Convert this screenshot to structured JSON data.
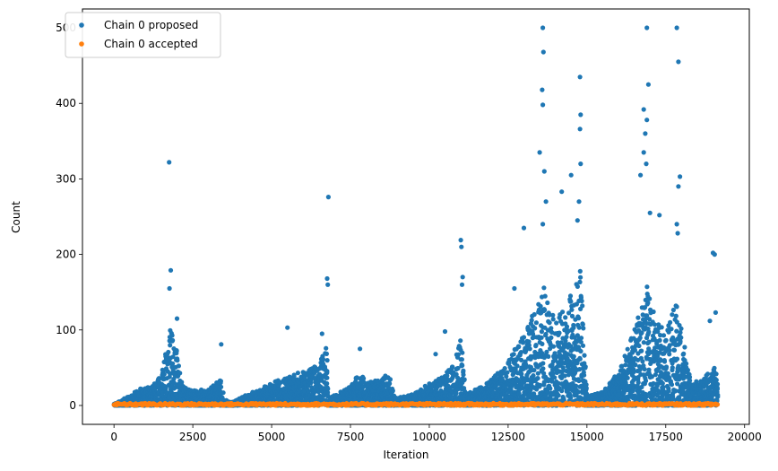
{
  "chart_data": {
    "type": "scatter",
    "title": "",
    "xlabel": "Iteration",
    "ylabel": "Count",
    "xlim": [
      -1000,
      20150
    ],
    "ylim": [
      -25,
      525
    ],
    "xticks": [
      0,
      2500,
      5000,
      7500,
      10000,
      12500,
      15000,
      17500,
      20000
    ],
    "xtick_labels": [
      "0",
      "2500",
      "5000",
      "7500",
      "10000",
      "12500",
      "15000",
      "17500",
      "20000"
    ],
    "yticks": [
      0,
      100,
      200,
      300,
      400,
      500
    ],
    "ytick_labels": [
      "0",
      "100",
      "200",
      "300",
      "400",
      "500"
    ],
    "grid": false,
    "legend": "top-left",
    "n_iterations": 19150,
    "series": [
      {
        "name": "Chain 0 proposed",
        "color": "#1f77b4",
        "envelope": [
          [
            0,
            2
          ],
          [
            200,
            6
          ],
          [
            500,
            14
          ],
          [
            800,
            22
          ],
          [
            1200,
            25
          ],
          [
            1500,
            40
          ],
          [
            1700,
            85
          ],
          [
            1800,
            110
          ],
          [
            2000,
            70
          ],
          [
            2200,
            25
          ],
          [
            2500,
            20
          ],
          [
            3000,
            22
          ],
          [
            3400,
            35
          ],
          [
            3500,
            8
          ],
          [
            3700,
            4
          ],
          [
            4000,
            10
          ],
          [
            4500,
            20
          ],
          [
            5000,
            30
          ],
          [
            5500,
            40
          ],
          [
            6000,
            45
          ],
          [
            6500,
            55
          ],
          [
            6750,
            85
          ],
          [
            6800,
            8
          ],
          [
            7000,
            14
          ],
          [
            7500,
            25
          ],
          [
            7800,
            45
          ],
          [
            8000,
            30
          ],
          [
            8500,
            35
          ],
          [
            8700,
            45
          ],
          [
            8900,
            10
          ],
          [
            9500,
            15
          ],
          [
            10000,
            30
          ],
          [
            10500,
            40
          ],
          [
            10900,
            70
          ],
          [
            11000,
            95
          ],
          [
            11150,
            15
          ],
          [
            11500,
            22
          ],
          [
            12000,
            35
          ],
          [
            12500,
            60
          ],
          [
            13000,
            95
          ],
          [
            13500,
            150
          ],
          [
            13700,
            160
          ],
          [
            14000,
            110
          ],
          [
            14500,
            150
          ],
          [
            14800,
            180
          ],
          [
            15000,
            12
          ],
          [
            15500,
            18
          ],
          [
            16000,
            45
          ],
          [
            16500,
            100
          ],
          [
            16900,
            160
          ],
          [
            17200,
            110
          ],
          [
            17500,
            100
          ],
          [
            17800,
            140
          ],
          [
            18000,
            100
          ],
          [
            18300,
            28
          ],
          [
            18600,
            35
          ],
          [
            18900,
            45
          ],
          [
            19150,
            55
          ]
        ],
        "outliers": [
          [
            1750,
            322
          ],
          [
            1800,
            179
          ],
          [
            1760,
            155
          ],
          [
            2000,
            115
          ],
          [
            3400,
            81
          ],
          [
            5500,
            103
          ],
          [
            6600,
            95
          ],
          [
            6800,
            276
          ],
          [
            6760,
            168
          ],
          [
            6780,
            160
          ],
          [
            7800,
            75
          ],
          [
            10200,
            68
          ],
          [
            10500,
            98
          ],
          [
            11000,
            219
          ],
          [
            11020,
            210
          ],
          [
            11060,
            170
          ],
          [
            11040,
            160
          ],
          [
            12700,
            155
          ],
          [
            13000,
            235
          ],
          [
            13500,
            335
          ],
          [
            13600,
            500
          ],
          [
            13620,
            468
          ],
          [
            13580,
            418
          ],
          [
            13600,
            398
          ],
          [
            13650,
            310
          ],
          [
            13700,
            270
          ],
          [
            13600,
            240
          ],
          [
            14200,
            283
          ],
          [
            14500,
            305
          ],
          [
            14780,
            435
          ],
          [
            14800,
            385
          ],
          [
            14780,
            366
          ],
          [
            14800,
            320
          ],
          [
            14750,
            270
          ],
          [
            14700,
            245
          ],
          [
            16700,
            305
          ],
          [
            16800,
            392
          ],
          [
            16900,
            500
          ],
          [
            16950,
            425
          ],
          [
            16900,
            378
          ],
          [
            16850,
            360
          ],
          [
            16800,
            335
          ],
          [
            16880,
            320
          ],
          [
            17000,
            255
          ],
          [
            17300,
            252
          ],
          [
            17850,
            500
          ],
          [
            17900,
            455
          ],
          [
            17950,
            303
          ],
          [
            17900,
            290
          ],
          [
            17850,
            240
          ],
          [
            17880,
            228
          ],
          [
            19000,
            202
          ],
          [
            19050,
            200
          ],
          [
            19080,
            123
          ],
          [
            18900,
            112
          ]
        ]
      },
      {
        "name": "Chain 0 accepted",
        "color": "#ff7f0e",
        "values_min": 0,
        "values_max": 3
      }
    ]
  }
}
